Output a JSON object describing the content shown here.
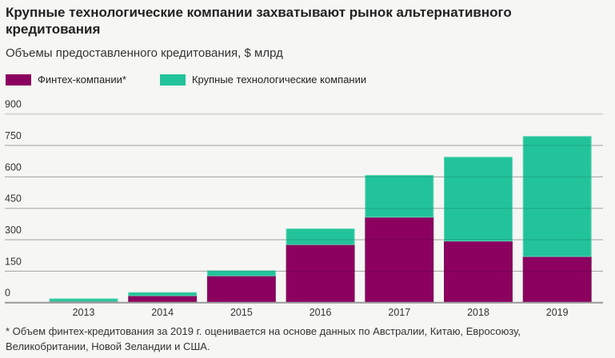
{
  "chart_data": {
    "type": "bar",
    "stacked": true,
    "title": "Крупные технологические компании захватывают рынок альтернативного кредитования",
    "subtitle": "Объемы предоставленного кредитования, $ млрд",
    "categories": [
      "2013",
      "2014",
      "2015",
      "2016",
      "2017",
      "2018",
      "2019"
    ],
    "series": [
      {
        "name": "Финтех-компании*",
        "color": "#8c0060",
        "values": [
          6,
          33,
          128,
          277,
          408,
          294,
          220
        ]
      },
      {
        "name": "Крупные технологические компании",
        "color": "#22c39a",
        "values": [
          12,
          15,
          24,
          75,
          199,
          400,
          573
        ]
      }
    ],
    "ylim": [
      0,
      900
    ],
    "yticks": [
      "0",
      "150",
      "300",
      "450",
      "600",
      "750",
      "900"
    ],
    "grid": true,
    "legend_position": "top-left",
    "footnote": "* Объем финтех-кредитования за 2019 г. оценивается на основе данных по Австралии, Китаю, Евросоюзу, Великобритании, Новой Зеландии и США."
  }
}
